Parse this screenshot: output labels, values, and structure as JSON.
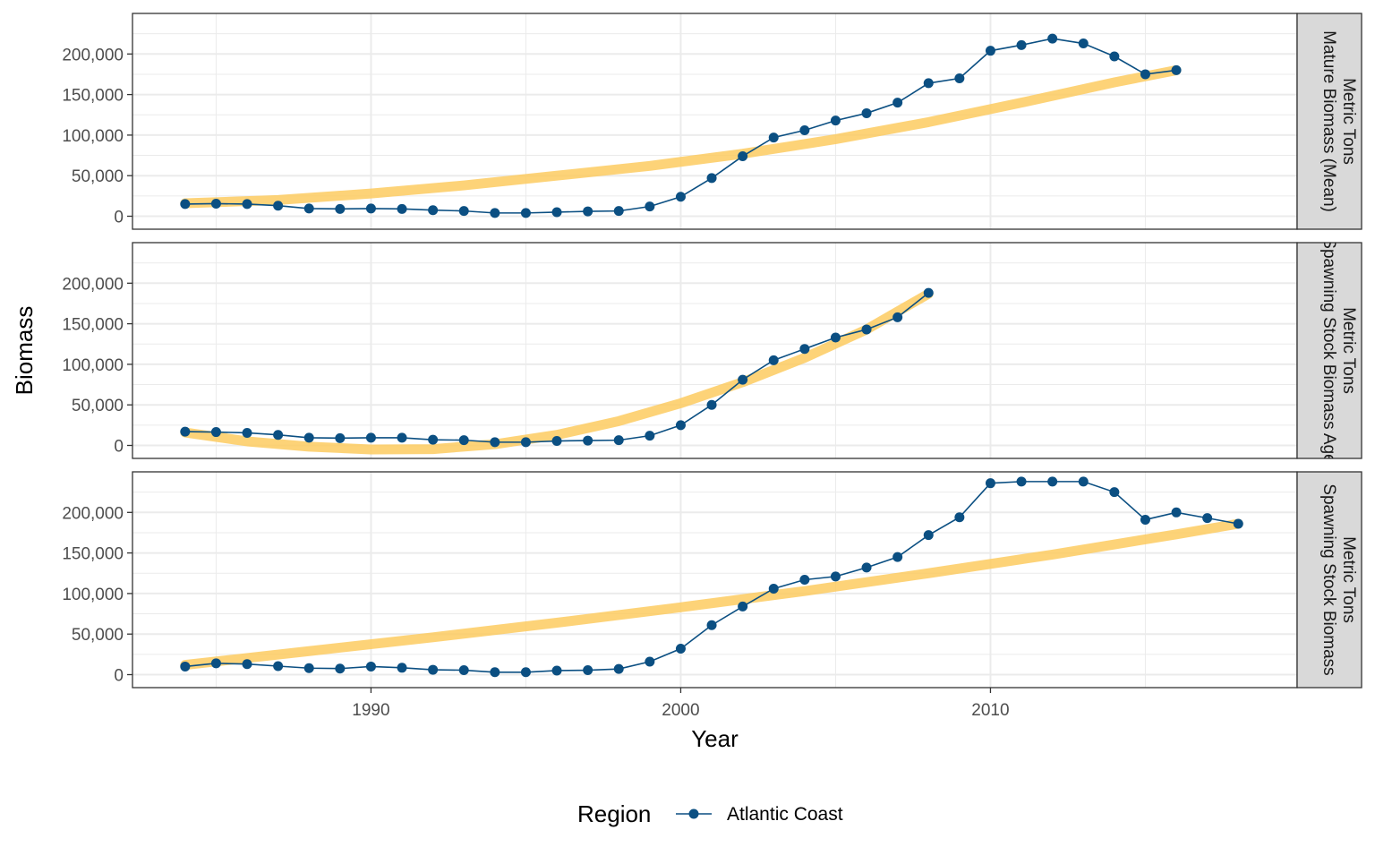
{
  "chart_data": {
    "type": "line",
    "xlabel": "Year",
    "ylabel": "Biomass",
    "xlim": [
      1982.3,
      2019.9
    ],
    "ylim": [
      -16000,
      250000
    ],
    "x_ticks": [
      1990,
      2000,
      2010
    ],
    "x_tick_labels": [
      "1990",
      "2000",
      "2010"
    ],
    "y_ticks": [
      0,
      50000,
      100000,
      150000,
      200000
    ],
    "y_tick_labels": [
      "0",
      "50,000",
      "100,000",
      "150,000",
      "200,000"
    ],
    "grid": true,
    "facet_layout": "rows",
    "legend": {
      "title": "Region",
      "position": "bottom",
      "entries": [
        {
          "label": "Atlantic Coast",
          "color": "#0b4f82"
        }
      ]
    },
    "colors": {
      "series": "#0b4f82",
      "trend": "#fdc95a",
      "strip_fill": "#d9d9d9",
      "panel_border": "#333333",
      "grid": "#ebebeb"
    },
    "panels": [
      {
        "strip": [
          "Mature Biomass (Mean)",
          "Metric Tons"
        ],
        "x": [
          1984,
          1985,
          1986,
          1987,
          1988,
          1989,
          1990,
          1991,
          1992,
          1993,
          1994,
          1995,
          1996,
          1997,
          1998,
          1999,
          2000,
          2001,
          2002,
          2003,
          2004,
          2005,
          2006,
          2007,
          2008,
          2009,
          2010,
          2011,
          2012,
          2013,
          2014,
          2015,
          2016
        ],
        "y": [
          15000,
          15500,
          15000,
          13000,
          9500,
          9000,
          9500,
          9000,
          7500,
          6500,
          4000,
          4000,
          5000,
          6000,
          6500,
          12000,
          24000,
          47000,
          74000,
          97000,
          106000,
          118000,
          127000,
          140000,
          164000,
          170000,
          204000,
          211000,
          219000,
          213000,
          197000,
          175000,
          180000
        ],
        "trend": [
          [
            1984,
            16000
          ],
          [
            1987,
            20000
          ],
          [
            1990,
            28000
          ],
          [
            1993,
            38000
          ],
          [
            1996,
            50000
          ],
          [
            1999,
            62000
          ],
          [
            2002,
            77000
          ],
          [
            2005,
            95000
          ],
          [
            2008,
            116000
          ],
          [
            2011,
            140000
          ],
          [
            2014,
            165000
          ],
          [
            2016,
            180000
          ]
        ]
      },
      {
        "strip": [
          "Spawning Stock Biomass Age",
          "Metric Tons"
        ],
        "x": [
          1984,
          1985,
          1986,
          1987,
          1988,
          1989,
          1990,
          1991,
          1992,
          1993,
          1994,
          1995,
          1996,
          1997,
          1998,
          1999,
          2000,
          2001,
          2002,
          2003,
          2004,
          2005,
          2006,
          2007,
          2008
        ],
        "y": [
          17000,
          16500,
          15500,
          13000,
          9500,
          9000,
          9500,
          9500,
          7000,
          6500,
          4000,
          4000,
          5500,
          6000,
          6500,
          12000,
          25000,
          50000,
          81000,
          105000,
          119000,
          133000,
          143000,
          158000,
          188000
        ],
        "trend": [
          [
            1984,
            16000
          ],
          [
            1986,
            5000
          ],
          [
            1988,
            -1500
          ],
          [
            1990,
            -5000
          ],
          [
            1992,
            -4500
          ],
          [
            1994,
            1500
          ],
          [
            1996,
            13000
          ],
          [
            1998,
            30000
          ],
          [
            2000,
            52000
          ],
          [
            2002,
            78000
          ],
          [
            2004,
            108000
          ],
          [
            2006,
            143000
          ],
          [
            2008,
            187000
          ]
        ]
      },
      {
        "strip": [
          "Spawning Stock Biomass",
          "Metric Tons"
        ],
        "x": [
          1984,
          1985,
          1986,
          1987,
          1988,
          1989,
          1990,
          1991,
          1992,
          1993,
          1994,
          1995,
          1996,
          1997,
          1998,
          1999,
          2000,
          2001,
          2002,
          2003,
          2004,
          2005,
          2006,
          2007,
          2008,
          2009,
          2010,
          2011,
          2012,
          2013,
          2014,
          2015,
          2016,
          2017,
          2018
        ],
        "y": [
          10000,
          14000,
          13000,
          10500,
          8000,
          7500,
          10000,
          8500,
          6000,
          5500,
          3000,
          3000,
          5000,
          5500,
          7000,
          16000,
          32000,
          61000,
          84000,
          106000,
          117000,
          121000,
          132000,
          145000,
          172000,
          194000,
          236000,
          238000,
          238000,
          238000,
          225000,
          191000,
          200000,
          193000,
          186000
        ],
        "trend": [
          [
            1984,
            12000
          ],
          [
            1988,
            29000
          ],
          [
            1992,
            46000
          ],
          [
            1996,
            64000
          ],
          [
            2000,
            83000
          ],
          [
            2004,
            103000
          ],
          [
            2008,
            125000
          ],
          [
            2012,
            148000
          ],
          [
            2016,
            173000
          ],
          [
            2018,
            186000
          ]
        ]
      }
    ]
  }
}
